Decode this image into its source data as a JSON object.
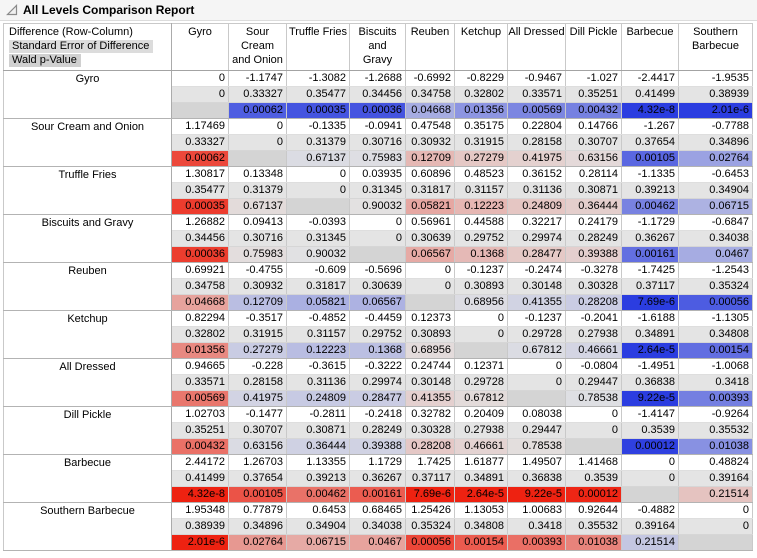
{
  "window": {
    "title": "All Levels Comparison Report"
  },
  "table": {
    "stat_labels": [
      "Difference (Row-Column)",
      "Standard Error of Difference",
      "Wald p-Value"
    ],
    "levels": [
      "Gyro",
      "Sour Cream and Onion",
      "Truffle Fries",
      "Biscuits and Gravy",
      "Reuben",
      "Ketchup",
      "All Dressed",
      "Dill Pickle",
      "Barbecue",
      "Southern Barbecue"
    ],
    "column_headers": [
      [
        "Gyro"
      ],
      [
        "Sour",
        "Cream",
        "and Onion"
      ],
      [
        "Truffle Fries"
      ],
      [
        "Biscuits",
        "and",
        "Gravy"
      ],
      [
        "Reuben"
      ],
      [
        "Ketchup"
      ],
      [
        "All Dressed"
      ],
      [
        "Dill Pickle"
      ],
      [
        "Barbecue"
      ],
      [
        "Southern",
        "Barbecue"
      ]
    ],
    "difference": [
      [
        "0",
        "-1.1747",
        "-1.3082",
        "-1.2688",
        "-0.6992",
        "-0.8229",
        "-0.9467",
        "-1.027",
        "-2.4417",
        "-1.9535"
      ],
      [
        "1.17469",
        "0",
        "-0.1335",
        "-0.0941",
        "0.47548",
        "0.35175",
        "0.22804",
        "0.14766",
        "-1.267",
        "-0.7788"
      ],
      [
        "1.30817",
        "0.13348",
        "0",
        "0.03935",
        "0.60896",
        "0.48523",
        "0.36152",
        "0.28114",
        "-1.1335",
        "-0.6453"
      ],
      [
        "1.26882",
        "0.09413",
        "-0.0393",
        "0",
        "0.56961",
        "0.44588",
        "0.32217",
        "0.24179",
        "-1.1729",
        "-0.6847"
      ],
      [
        "0.69921",
        "-0.4755",
        "-0.609",
        "-0.5696",
        "0",
        "-0.1237",
        "-0.2474",
        "-0.3278",
        "-1.7425",
        "-1.2543"
      ],
      [
        "0.82294",
        "-0.3517",
        "-0.4852",
        "-0.4459",
        "0.12373",
        "0",
        "-0.1237",
        "-0.2041",
        "-1.6188",
        "-1.1305"
      ],
      [
        "0.94665",
        "-0.228",
        "-0.3615",
        "-0.3222",
        "0.24744",
        "0.12371",
        "0",
        "-0.0804",
        "-1.4951",
        "-1.0068"
      ],
      [
        "1.02703",
        "-0.1477",
        "-0.2811",
        "-0.2418",
        "0.32782",
        "0.20409",
        "0.08038",
        "0",
        "-1.4147",
        "-0.9264"
      ],
      [
        "2.44172",
        "1.26703",
        "1.13355",
        "1.1729",
        "1.7425",
        "1.61877",
        "1.49507",
        "1.41468",
        "0",
        "0.48824"
      ],
      [
        "1.95348",
        "0.77879",
        "0.6453",
        "0.68465",
        "1.25426",
        "1.13053",
        "1.00683",
        "0.92644",
        "-0.4882",
        "0"
      ]
    ],
    "std_error": [
      [
        "0",
        "0.33327",
        "0.35477",
        "0.34456",
        "0.34758",
        "0.32802",
        "0.33571",
        "0.35251",
        "0.41499",
        "0.38939"
      ],
      [
        "0.33327",
        "0",
        "0.31379",
        "0.30716",
        "0.30932",
        "0.31915",
        "0.28158",
        "0.30707",
        "0.37654",
        "0.34896"
      ],
      [
        "0.35477",
        "0.31379",
        "0",
        "0.31345",
        "0.31817",
        "0.31157",
        "0.31136",
        "0.30871",
        "0.39213",
        "0.34904"
      ],
      [
        "0.34456",
        "0.30716",
        "0.31345",
        "0",
        "0.30639",
        "0.29752",
        "0.29974",
        "0.28249",
        "0.36267",
        "0.34038"
      ],
      [
        "0.34758",
        "0.30932",
        "0.31817",
        "0.30639",
        "0",
        "0.30893",
        "0.30148",
        "0.30328",
        "0.37117",
        "0.35324"
      ],
      [
        "0.32802",
        "0.31915",
        "0.31157",
        "0.29752",
        "0.30893",
        "0",
        "0.29728",
        "0.27938",
        "0.34891",
        "0.34808"
      ],
      [
        "0.33571",
        "0.28158",
        "0.31136",
        "0.29974",
        "0.30148",
        "0.29728",
        "0",
        "0.29447",
        "0.36838",
        "0.3418"
      ],
      [
        "0.35251",
        "0.30707",
        "0.30871",
        "0.28249",
        "0.30328",
        "0.27938",
        "0.29447",
        "0",
        "0.3539",
        "0.35532"
      ],
      [
        "0.41499",
        "0.37654",
        "0.39213",
        "0.36267",
        "0.37117",
        "0.34891",
        "0.36838",
        "0.3539",
        "0",
        "0.39164"
      ],
      [
        "0.38939",
        "0.34896",
        "0.34904",
        "0.34038",
        "0.35324",
        "0.34808",
        "0.3418",
        "0.35532",
        "0.39164",
        "0"
      ]
    ],
    "p_value": [
      [
        "",
        "0.00062",
        "0.00035",
        "0.00036",
        "0.04668",
        "0.01356",
        "0.00569",
        "0.00432",
        "4.32e-8",
        "2.01e-6"
      ],
      [
        "0.00062",
        "",
        "0.67137",
        "0.75983",
        "0.12709",
        "0.27279",
        "0.41975",
        "0.63156",
        "0.00105",
        "0.02764"
      ],
      [
        "0.00035",
        "0.67137",
        "",
        "0.90032",
        "0.05821",
        "0.12223",
        "0.24809",
        "0.36444",
        "0.00462",
        "0.06715"
      ],
      [
        "0.00036",
        "0.75983",
        "0.90032",
        "",
        "0.06567",
        "0.1368",
        "0.28477",
        "0.39388",
        "0.00161",
        "0.0467"
      ],
      [
        "0.04668",
        "0.12709",
        "0.05821",
        "0.06567",
        "",
        "0.68956",
        "0.41355",
        "0.28208",
        "7.69e-6",
        "0.00056"
      ],
      [
        "0.01356",
        "0.27279",
        "0.12223",
        "0.1368",
        "0.68956",
        "",
        "0.67812",
        "0.46661",
        "2.64e-5",
        "0.00154"
      ],
      [
        "0.00569",
        "0.41975",
        "0.24809",
        "0.28477",
        "0.41355",
        "0.67812",
        "",
        "0.78538",
        "9.22e-5",
        "0.00393"
      ],
      [
        "0.00432",
        "0.63156",
        "0.36444",
        "0.39388",
        "0.28208",
        "0.46661",
        "0.78538",
        "",
        "0.00012",
        "0.01038"
      ],
      [
        "4.32e-8",
        "0.00105",
        "0.00462",
        "0.00161",
        "7.69e-6",
        "2.64e-5",
        "9.22e-5",
        "0.00012",
        "",
        "0.21514"
      ],
      [
        "2.01e-6",
        "0.02764",
        "0.06715",
        "0.0467",
        "0.00056",
        "0.00154",
        "0.00393",
        "0.01038",
        "0.21514",
        ""
      ]
    ],
    "colors": {
      "positive": "#ee2211",
      "negative": "#2b3de0",
      "neutral_base": "#e3e3e3",
      "se_row": "#e4e4e4",
      "diagonal_p": "#d4d4d4",
      "header_highlight": "#dcdcdc"
    }
  }
}
